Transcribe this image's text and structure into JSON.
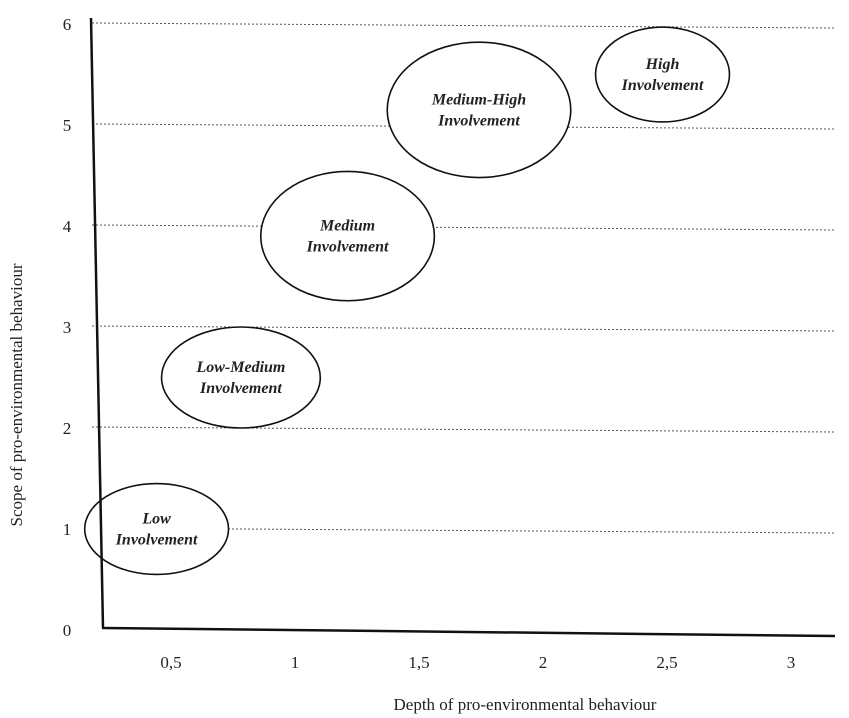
{
  "chart_data": {
    "type": "scatter",
    "title": "",
    "xlabel": "Depth of pro-environmental behaviour",
    "ylabel": "Scope of pro-environmental behaviour",
    "xlim": [
      0,
      3
    ],
    "ylim": [
      0,
      6
    ],
    "x_ticks": [
      {
        "value": 0.5,
        "label": "0,5"
      },
      {
        "value": 1,
        "label": "1"
      },
      {
        "value": 1.5,
        "label": "1,5"
      },
      {
        "value": 2,
        "label": "2"
      },
      {
        "value": 2.5,
        "label": "2,5"
      },
      {
        "value": 3,
        "label": "3"
      }
    ],
    "y_ticks": [
      {
        "value": 0,
        "label": "0"
      },
      {
        "value": 1,
        "label": "1"
      },
      {
        "value": 2,
        "label": "2"
      },
      {
        "value": 3,
        "label": "3"
      },
      {
        "value": 4,
        "label": "4"
      },
      {
        "value": 5,
        "label": "5"
      },
      {
        "value": 6,
        "label": "6"
      }
    ],
    "grid": "horizontal",
    "legend": "none",
    "series": [
      {
        "points": [
          {
            "x": 0.45,
            "y": 1.0,
            "rx": 0.29,
            "ry": 0.45,
            "label": [
              "Low",
              "Involvement"
            ]
          },
          {
            "x": 0.79,
            "y": 2.5,
            "rx": 0.32,
            "ry": 0.5,
            "label": [
              "Low-Medium",
              "Involvement"
            ]
          },
          {
            "x": 1.22,
            "y": 3.9,
            "rx": 0.35,
            "ry": 0.64,
            "label": [
              "Medium",
              "Involvement"
            ]
          },
          {
            "x": 1.75,
            "y": 5.15,
            "rx": 0.37,
            "ry": 0.67,
            "label": [
              "Medium-High",
              "Involvement"
            ]
          },
          {
            "x": 2.49,
            "y": 5.5,
            "rx": 0.27,
            "ry": 0.47,
            "label": [
              "High",
              "Involvement"
            ]
          }
        ]
      }
    ]
  }
}
